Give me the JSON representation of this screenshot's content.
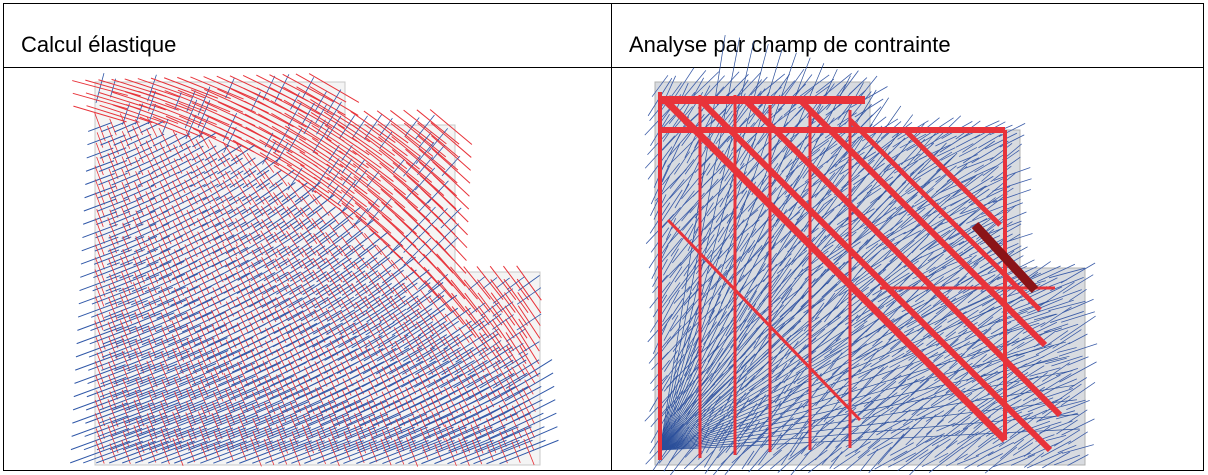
{
  "table": {
    "header": [
      "Calcul élastique",
      "Analyse par champ de contrainte"
    ]
  }
}
